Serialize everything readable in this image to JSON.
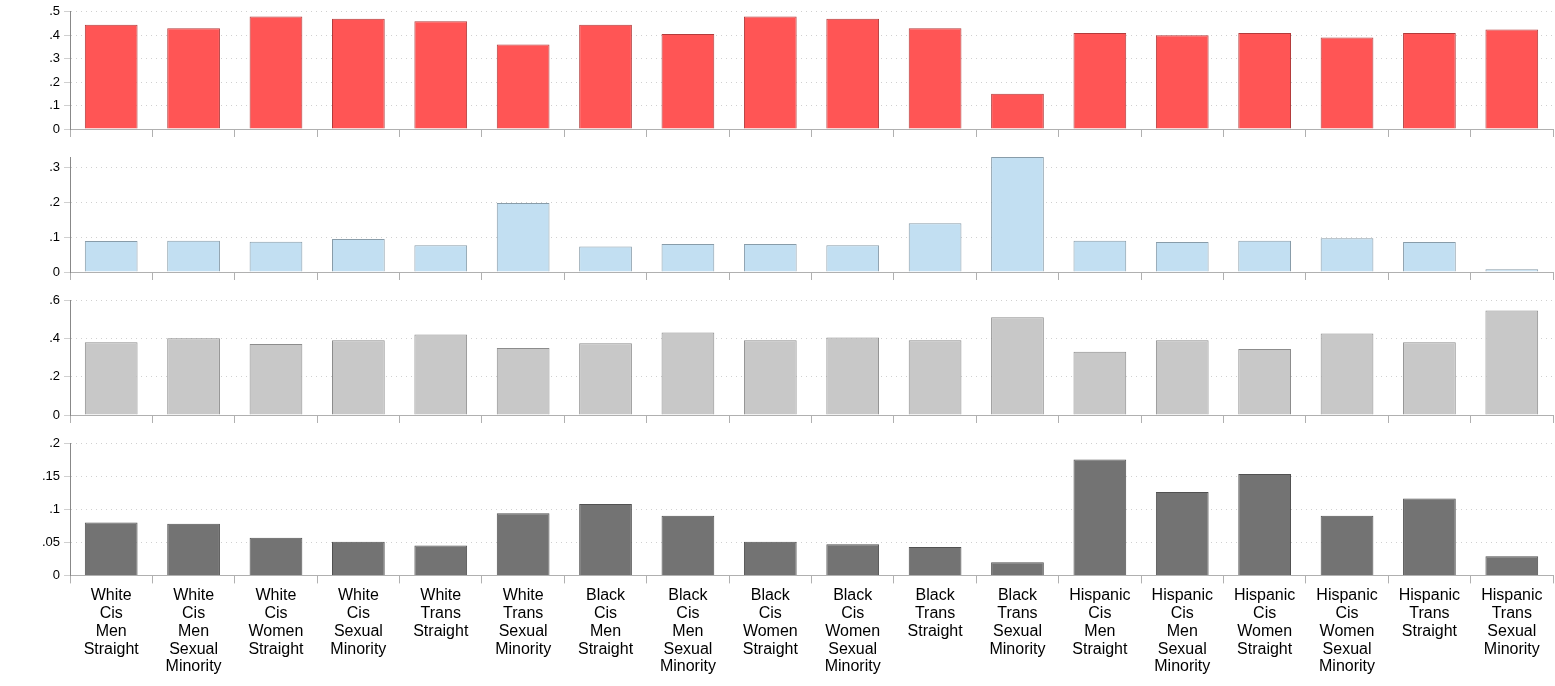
{
  "chart_data": [
    {
      "type": "bar",
      "categories": [
        null,
        null,
        null,
        null,
        null,
        null,
        null,
        null,
        null,
        null,
        null,
        null,
        null,
        null,
        null,
        null,
        null,
        null
      ],
      "values": [
        0.445,
        0.43,
        0.48,
        0.47,
        0.46,
        0.36,
        0.445,
        0.405,
        0.48,
        0.47,
        0.43,
        0.15,
        0.41,
        0.4,
        0.41,
        0.39,
        0.41,
        0.425
      ],
      "color": "#ff5555",
      "ylim": [
        0,
        0.5
      ],
      "yticks": [
        {
          "value": 0,
          "label": "0"
        },
        {
          "value": 0.1,
          "label": ".1"
        },
        {
          "value": 0.2,
          "label": ".2"
        },
        {
          "value": 0.3,
          "label": ".3"
        },
        {
          "value": 0.4,
          "label": ".4"
        },
        {
          "value": 0.5,
          "label": ".5"
        }
      ],
      "grid": "y",
      "tick_labels": "y"
    },
    {
      "type": "bar",
      "categories": [
        null,
        null,
        null,
        null,
        null,
        null,
        null,
        null,
        null,
        null,
        null,
        null,
        null,
        null,
        null,
        null,
        null,
        null
      ],
      "values": [
        0.089,
        0.09,
        0.087,
        0.095,
        0.077,
        0.198,
        0.073,
        0.08,
        0.08,
        0.077,
        0.14,
        0.33,
        0.09,
        0.086,
        0.09,
        0.097,
        0.086,
        0.008
      ],
      "color": "#c2dff2",
      "ylim": [
        0,
        0.33
      ],
      "yticks": [
        {
          "value": 0,
          "label": "0"
        },
        {
          "value": 0.1,
          "label": ".1"
        },
        {
          "value": 0.2,
          "label": ".2"
        },
        {
          "value": 0.3,
          "label": ".3"
        }
      ],
      "grid": "y",
      "tick_labels": "y"
    },
    {
      "type": "bar",
      "categories": [
        null,
        null,
        null,
        null,
        null,
        null,
        null,
        null,
        null,
        null,
        null,
        null,
        null,
        null,
        null,
        null,
        null,
        null
      ],
      "values": [
        0.38,
        0.4,
        0.37,
        0.39,
        0.42,
        0.35,
        0.375,
        0.43,
        0.39,
        0.405,
        0.39,
        0.51,
        0.33,
        0.39,
        0.345,
        0.425,
        0.38,
        0.545
      ],
      "color": "#c8c8c8",
      "ylim": [
        0,
        0.6
      ],
      "yticks": [
        {
          "value": 0,
          "label": "0"
        },
        {
          "value": 0.2,
          "label": ".2"
        },
        {
          "value": 0.4,
          "label": ".4"
        },
        {
          "value": 0.6,
          "label": ".6"
        }
      ],
      "grid": "y",
      "tick_labels": "y"
    },
    {
      "type": "bar",
      "categories": [
        "White Cis Men Straight",
        "White Cis Men Sexual Minority",
        "White Cis Women Straight",
        "White Cis Sexual Minority",
        "White Trans Straight",
        "White Trans Sexual Minority",
        "Black Cis Men Straight",
        "Black Cis Men Sexual Minority",
        "Black Cis Women Straight",
        "Black Cis Women Sexual Minority",
        "Black Trans Straight",
        "Black Trans Sexual Minority",
        "Hispanic Cis Men Straight",
        "Hispanic Cis Men Sexual Minority",
        "Hispanic Cis Women Straight",
        "Hispanic Cis Women Sexual Minority",
        "Hispanic Trans Straight",
        "Hispanic Trans Sexual Minority"
      ],
      "values": [
        0.08,
        0.078,
        0.057,
        0.051,
        0.045,
        0.094,
        0.108,
        0.09,
        0.051,
        0.047,
        0.043,
        0.02,
        0.175,
        0.126,
        0.153,
        0.09,
        0.116,
        0.029
      ],
      "color": "#737373",
      "ylim": [
        0,
        0.2
      ],
      "yticks": [
        {
          "value": 0,
          "label": "0"
        },
        {
          "value": 0.05,
          "label": ".05"
        },
        {
          "value": 0.1,
          "label": ".1"
        },
        {
          "value": 0.15,
          "label": ".15"
        },
        {
          "value": 0.2,
          "label": ".2"
        }
      ],
      "grid": "y"
    }
  ]
}
